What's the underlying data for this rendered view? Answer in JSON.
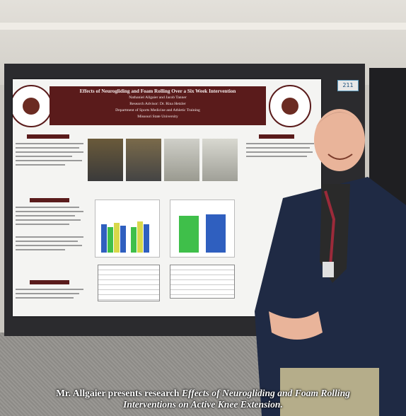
{
  "poster": {
    "number": "211",
    "title": "Effects of Neurogliding and Foam Rolling Over a Six Week Intervention",
    "authors": "Nathaniel Allgaier and Jacob Tanner",
    "advisor": "Research Advisor: Dr. Rina Hetzler",
    "department": "Department of Sports Medicine and Athletic Training",
    "university": "Missouri State University"
  },
  "caption": {
    "prefix": "Mr. Allgaier presents research ",
    "title_line1": "Effects of Neurogliding and Foam Rolling",
    "title_line2": "Interventions on Active Knee Extension."
  },
  "colors": {
    "banner": "#5a1b1b",
    "chart_blue": "#2f5fbf",
    "chart_green": "#3fbf4a",
    "chart_yellow": "#d8d84a",
    "jacket": "#1f2a44"
  }
}
